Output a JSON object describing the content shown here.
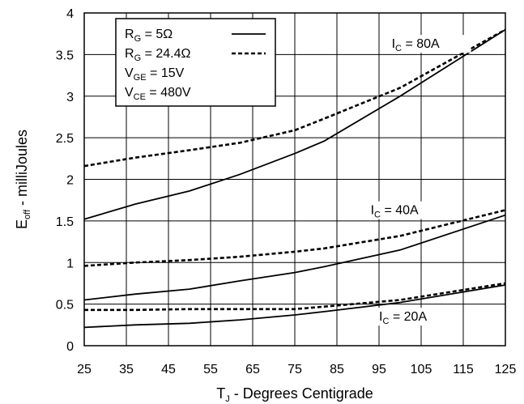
{
  "chart_data": {
    "type": "line",
    "xlabel": {
      "main": "T",
      "sub": "J",
      "rest": " - Degrees Centigrade"
    },
    "ylabel": {
      "main": "E",
      "sub": "off",
      "rest": " - milliJoules"
    },
    "xlim": [
      25,
      125
    ],
    "ylim": [
      0,
      4
    ],
    "xticks": [
      25,
      35,
      45,
      55,
      65,
      75,
      85,
      95,
      105,
      115,
      125
    ],
    "yticks": [
      0,
      0.5,
      1,
      1.5,
      2,
      2.5,
      3,
      3.5,
      4
    ],
    "ytick_labels": [
      "0",
      "0.5",
      "1",
      "1.5",
      "2",
      "2.5",
      "3",
      "3.5",
      "4"
    ],
    "grid": true,
    "legend": {
      "placement": "top-left",
      "entries": [
        {
          "main": "R",
          "sub": "G",
          "rest": " = 5Ω",
          "style": "solid"
        },
        {
          "main": "R",
          "sub": "G",
          "rest": " = 24.4Ω",
          "style": "dashed"
        },
        {
          "main": "V",
          "sub": "GE",
          "rest": " = 15V",
          "style": "none"
        },
        {
          "main": "V",
          "sub": "CE",
          "rest": " = 480V",
          "style": "none"
        }
      ]
    },
    "annotations": [
      {
        "main": "I",
        "sub": "C",
        "rest": " = 80A",
        "x": 98,
        "y": 3.58
      },
      {
        "main": "I",
        "sub": "C",
        "rest": " = 40A",
        "x": 93,
        "y": 1.58
      },
      {
        "main": "I",
        "sub": "C",
        "rest": " = 20A",
        "x": 95,
        "y": 0.3
      }
    ],
    "series": [
      {
        "group": "80A",
        "style": "solid",
        "x": [
          25,
          37,
          50,
          62,
          75,
          82,
          100,
          125
        ],
        "y": [
          1.52,
          1.7,
          1.86,
          2.06,
          2.31,
          2.46,
          3.0,
          3.8
        ]
      },
      {
        "group": "80A",
        "style": "dashed",
        "x": [
          25,
          37,
          50,
          62,
          75,
          82,
          100,
          125
        ],
        "y": [
          2.16,
          2.26,
          2.35,
          2.44,
          2.59,
          2.73,
          3.1,
          3.8
        ]
      },
      {
        "group": "40A",
        "style": "solid",
        "x": [
          25,
          37,
          50,
          62,
          75,
          82,
          100,
          125
        ],
        "y": [
          0.55,
          0.62,
          0.68,
          0.78,
          0.88,
          0.95,
          1.15,
          1.57
        ]
      },
      {
        "group": "40A",
        "style": "dashed",
        "x": [
          25,
          37,
          50,
          62,
          75,
          82,
          100,
          125
        ],
        "y": [
          0.96,
          1.0,
          1.03,
          1.07,
          1.13,
          1.17,
          1.32,
          1.63
        ]
      },
      {
        "group": "20A",
        "style": "solid",
        "x": [
          25,
          37,
          50,
          62,
          75,
          82,
          100,
          125
        ],
        "y": [
          0.22,
          0.25,
          0.27,
          0.31,
          0.37,
          0.41,
          0.52,
          0.73
        ]
      },
      {
        "group": "20A",
        "style": "dashed",
        "x": [
          25,
          37,
          50,
          62,
          75,
          82,
          100,
          125
        ],
        "y": [
          0.43,
          0.43,
          0.44,
          0.44,
          0.44,
          0.47,
          0.55,
          0.75
        ]
      }
    ],
    "colors": {
      "line": "#000000",
      "grid": "#000000",
      "background": "#ffffff"
    }
  }
}
